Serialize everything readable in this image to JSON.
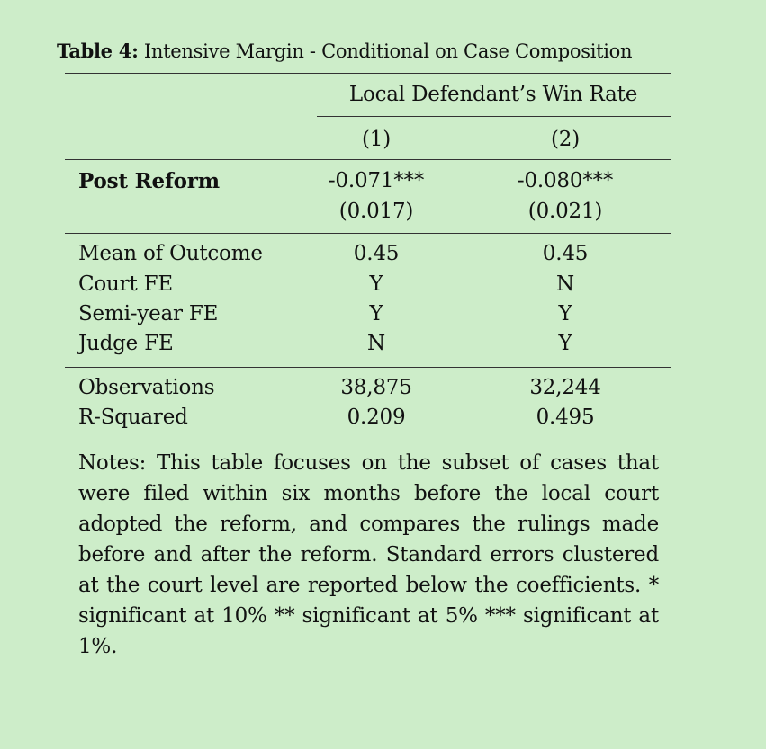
{
  "caption": {
    "label": "Table 4:",
    "title": "Intensive Margin - Conditional on Case Composition"
  },
  "table": {
    "dependent_variable": "Local Defendant’s Win Rate",
    "columns": [
      "(1)",
      "(2)"
    ],
    "coefficient_rows": [
      {
        "label": "Post Reform",
        "estimates": [
          "-0.071***",
          "-0.080***"
        ],
        "std_errors": [
          "(0.017)",
          "(0.021)"
        ]
      }
    ],
    "indicator_rows": [
      {
        "label": "Mean of Outcome",
        "values": [
          "0.45",
          "0.45"
        ]
      },
      {
        "label": "Court FE",
        "values": [
          "Y",
          "N"
        ]
      },
      {
        "label": "Semi-year FE",
        "values": [
          "Y",
          "Y"
        ]
      },
      {
        "label": "Judge FE",
        "values": [
          "N",
          "Y"
        ]
      }
    ],
    "stat_rows": [
      {
        "label": "Observations",
        "values": [
          "38,875",
          "32,244"
        ]
      },
      {
        "label": "R-Squared",
        "values": [
          "0.209",
          "0.495"
        ]
      }
    ],
    "notes": "Notes: This table focuses on the subset of cases that were filed within six months before the local court adopted the reform, and compares the rulings made before and after the reform. Standard errors clustered at the court level are reported below the coefficients. * significant at 10% ** significant at 5% *** significant at 1%."
  }
}
